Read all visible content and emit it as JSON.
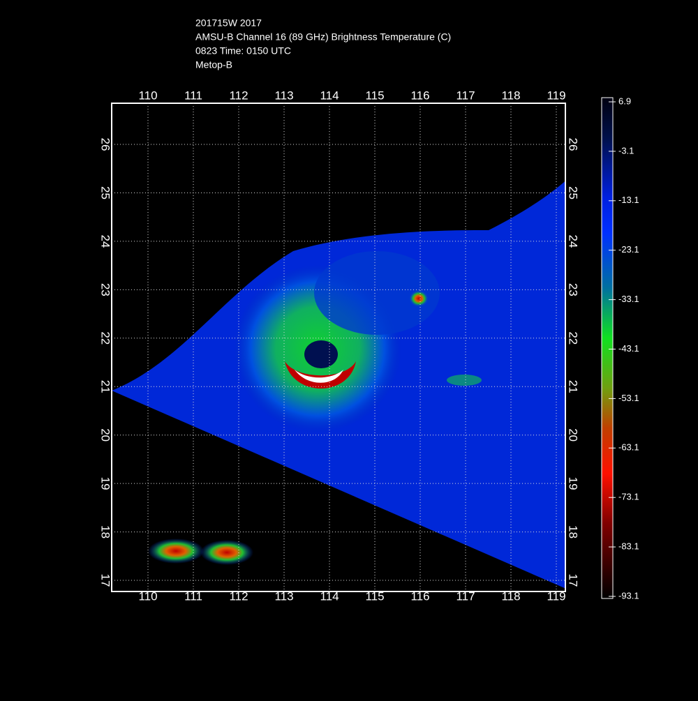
{
  "header": {
    "lines": [
      "201715W 2017",
      "AMSU-B Channel 16 (89 GHz) Brightness Temperature (C)",
      "0823 Time: 0150 UTC",
      "Metop-B"
    ]
  },
  "map": {
    "lonlim": [
      109.2,
      119.2
    ],
    "latlim": [
      16.77,
      26.85
    ],
    "lonticks": [
      110,
      111,
      112,
      113,
      114,
      115,
      116,
      117,
      118,
      119
    ],
    "latticks": [
      17,
      18,
      19,
      20,
      21,
      22,
      23,
      24,
      25,
      26
    ]
  },
  "colorbar": {
    "lim": [
      -93.1,
      6.9
    ],
    "ticks": [
      6.9,
      -3.1,
      -13.1,
      -23.1,
      -33.1,
      -43.1,
      -53.1,
      -63.1,
      -73.1,
      -83.1,
      -93.1
    ]
  }
}
